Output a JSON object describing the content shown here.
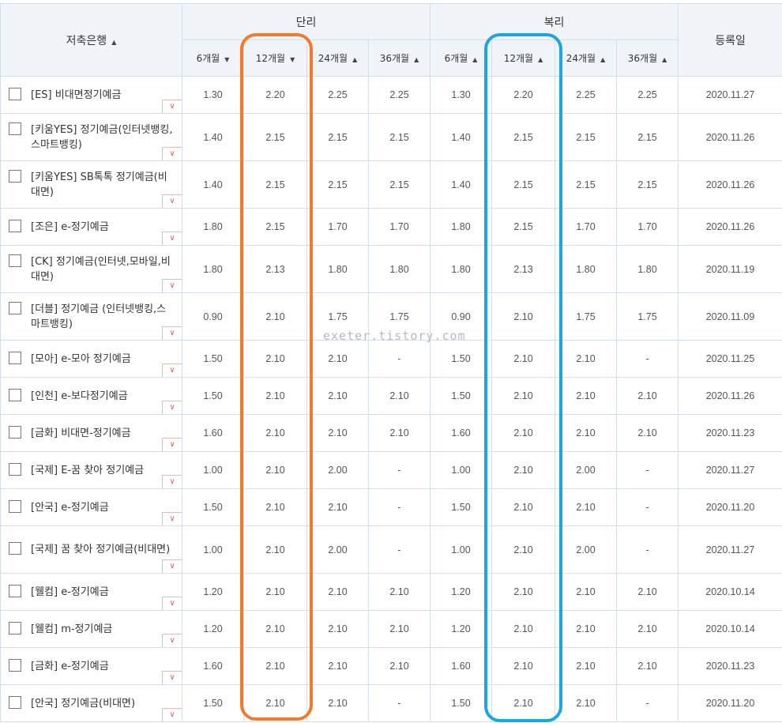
{
  "header": {
    "bank_label": "저축은행",
    "simple_label": "단리",
    "compound_label": "복리",
    "date_label": "등록일",
    "periods": [
      "6개월",
      "12개월",
      "24개월",
      "36개월"
    ]
  },
  "rows": [
    {
      "name": "[ES] 비대면정기예금",
      "simple": [
        "1.30",
        "2.20",
        "2.25",
        "2.25"
      ],
      "compound": [
        "1.30",
        "2.20",
        "2.25",
        "2.25"
      ],
      "date": "2020.11.27"
    },
    {
      "name": "[키움YES] 정기예금(인터넷뱅킹,스마트뱅킹)",
      "simple": [
        "1.40",
        "2.15",
        "2.15",
        "2.15"
      ],
      "compound": [
        "1.40",
        "2.15",
        "2.15",
        "2.15"
      ],
      "date": "2020.11.26"
    },
    {
      "name": "[키움YES] SB톡톡 정기예금(비대면)",
      "simple": [
        "1.40",
        "2.15",
        "2.15",
        "2.15"
      ],
      "compound": [
        "1.40",
        "2.15",
        "2.15",
        "2.15"
      ],
      "date": "2020.11.26"
    },
    {
      "name": "[조은] e-정기예금",
      "simple": [
        "1.80",
        "2.15",
        "1.70",
        "1.70"
      ],
      "compound": [
        "1.80",
        "2.15",
        "1.70",
        "1.70"
      ],
      "date": "2020.11.26"
    },
    {
      "name": "[CK] 정기예금(인터넷,모바일,비대면)",
      "simple": [
        "1.80",
        "2.13",
        "1.80",
        "1.80"
      ],
      "compound": [
        "1.80",
        "2.13",
        "1.80",
        "1.80"
      ],
      "date": "2020.11.19"
    },
    {
      "name": "[더블] 정기예금 (인터넷뱅킹,스마트뱅킹)",
      "simple": [
        "0.90",
        "2.10",
        "1.75",
        "1.75"
      ],
      "compound": [
        "0.90",
        "2.10",
        "1.75",
        "1.75"
      ],
      "date": "2020.11.09"
    },
    {
      "name": "[모아] e-모아 정기예금",
      "simple": [
        "1.50",
        "2.10",
        "2.10",
        "-"
      ],
      "compound": [
        "1.50",
        "2.10",
        "2.10",
        "-"
      ],
      "date": "2020.11.25"
    },
    {
      "name": "[인천] e-보다정기예금",
      "simple": [
        "1.50",
        "2.10",
        "2.10",
        "2.10"
      ],
      "compound": [
        "1.50",
        "2.10",
        "2.10",
        "2.10"
      ],
      "date": "2020.11.26"
    },
    {
      "name": "[금화] 비대면-정기예금",
      "simple": [
        "1.60",
        "2.10",
        "2.10",
        "2.10"
      ],
      "compound": [
        "1.60",
        "2.10",
        "2.10",
        "2.10"
      ],
      "date": "2020.11.23"
    },
    {
      "name": "[국제] E-꿈 찾아 정기예금",
      "simple": [
        "1.00",
        "2.10",
        "2.00",
        "-"
      ],
      "compound": [
        "1.00",
        "2.10",
        "2.00",
        "-"
      ],
      "date": "2020.11.27"
    },
    {
      "name": "[안국] e-정기예금",
      "simple": [
        "1.50",
        "2.10",
        "2.10",
        "-"
      ],
      "compound": [
        "1.50",
        "2.10",
        "2.10",
        "-"
      ],
      "date": "2020.11.20"
    },
    {
      "name": "[국제] 꿈 찾아 정기예금(비대면)",
      "simple": [
        "1.00",
        "2.10",
        "2.00",
        "-"
      ],
      "compound": [
        "1.00",
        "2.10",
        "2.00",
        "-"
      ],
      "date": "2020.11.27"
    },
    {
      "name": "[웰컴] e-정기예금",
      "simple": [
        "1.20",
        "2.10",
        "2.10",
        "2.10"
      ],
      "compound": [
        "1.20",
        "2.10",
        "2.10",
        "2.10"
      ],
      "date": "2020.10.14"
    },
    {
      "name": "[웰컴] m-정기예금",
      "simple": [
        "1.20",
        "2.10",
        "2.10",
        "2.10"
      ],
      "compound": [
        "1.20",
        "2.10",
        "2.10",
        "2.10"
      ],
      "date": "2020.10.14"
    },
    {
      "name": "[금화] e-정기예금",
      "simple": [
        "1.60",
        "2.10",
        "2.10",
        "2.10"
      ],
      "compound": [
        "1.60",
        "2.10",
        "2.10",
        "2.10"
      ],
      "date": "2020.11.23"
    },
    {
      "name": "[안국] 정기예금(비대면)",
      "simple": [
        "1.50",
        "2.10",
        "2.10",
        "-"
      ],
      "compound": [
        "1.50",
        "2.10",
        "2.10",
        "-"
      ],
      "date": "2020.11.20"
    }
  ],
  "watermark": "exeter.tistory.com",
  "colors": {
    "header_bg": "#f0f4f9",
    "highlight_orange": "#f27a2a",
    "highlight_blue": "#1ba6e0",
    "dropdown_red": "#e35b5b"
  }
}
